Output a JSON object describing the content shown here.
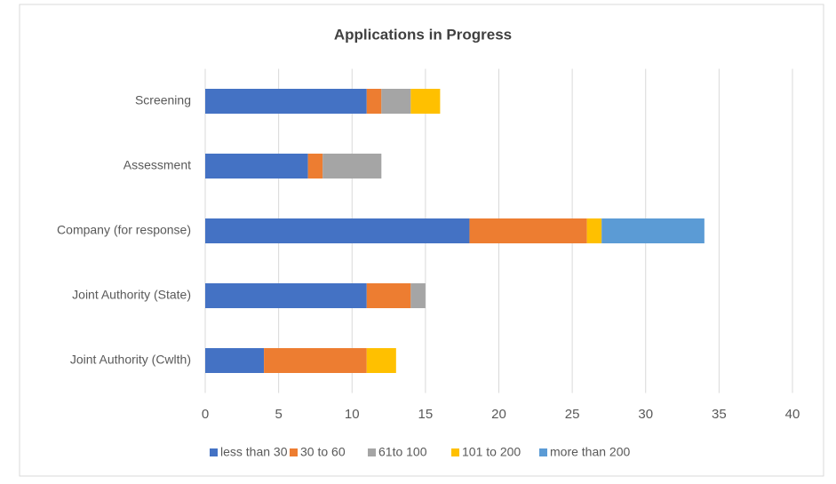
{
  "chart_data": {
    "type": "stacked-bar-horizontal",
    "title": "Applications in Progress",
    "categories": [
      "Screening",
      "Assessment",
      "Company (for response)",
      "Joint Authority (State)",
      "Joint Authority (Cwlth)"
    ],
    "series": [
      {
        "name": "less than 30",
        "color": "#4472c4",
        "values": [
          11,
          7,
          18,
          11,
          4
        ]
      },
      {
        "name": "30 to 60",
        "color": "#ed7d31",
        "values": [
          1,
          1,
          8,
          3,
          7
        ]
      },
      {
        "name": "61to 100",
        "color": "#a5a5a5",
        "values": [
          2,
          4,
          0,
          1,
          0
        ]
      },
      {
        "name": "101 to 200",
        "color": "#ffc000",
        "values": [
          2,
          0,
          1,
          0,
          2
        ]
      },
      {
        "name": "more than 200",
        "color": "#5b9bd5",
        "values": [
          0,
          0,
          7,
          0,
          0
        ]
      }
    ],
    "xlim": [
      0,
      40
    ],
    "xticks": [
      0,
      5,
      10,
      15,
      20,
      25,
      30,
      35,
      40
    ],
    "grid": true,
    "legend": "bottom"
  }
}
